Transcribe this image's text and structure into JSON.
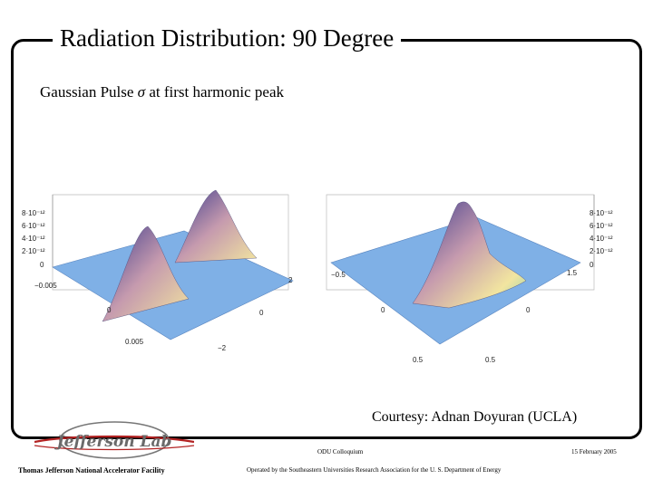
{
  "slide": {
    "title": "Radiation Distribution: 90 Degree",
    "subtitle_prefix": "Gaussian Pulse ",
    "subtitle_symbol": "σ",
    "subtitle_suffix": " at first harmonic peak",
    "courtesy": "Courtesy: Adnan Doyuran (UCLA)"
  },
  "left_plot": {
    "z_ticks": [
      "8·10⁻¹²",
      "6·10⁻¹²",
      "4·10⁻¹²",
      "2·10⁻¹²",
      "0"
    ],
    "x_ticks": [
      "−0.005",
      "0",
      "0.005"
    ],
    "y_ticks": [
      "2",
      "0",
      "−2"
    ]
  },
  "right_plot": {
    "z_ticks": [
      "8·10⁻¹²",
      "6·10⁻¹²",
      "4·10⁻¹²",
      "2·10⁻¹²",
      "0"
    ],
    "x_ticks": [
      "−0.5",
      "0",
      "0.5"
    ],
    "y_ticks": [
      "1.5",
      "0",
      "0.5"
    ]
  },
  "footer": {
    "logo_text": "Jefferson Lab",
    "lab_name": "Thomas Jefferson National Accelerator Facility",
    "colloquium": "ODU Colloquium",
    "operated_by": "Operated by the Southeastern Universities Research Association for the U. S. Department of Energy",
    "date": "15 February 2005"
  },
  "colors": {
    "surface_base": "#7fb0e6",
    "peak_purple": "#5a4a9a",
    "peak_mauve": "#c89aa8",
    "peak_yellow": "#f0e09a"
  }
}
